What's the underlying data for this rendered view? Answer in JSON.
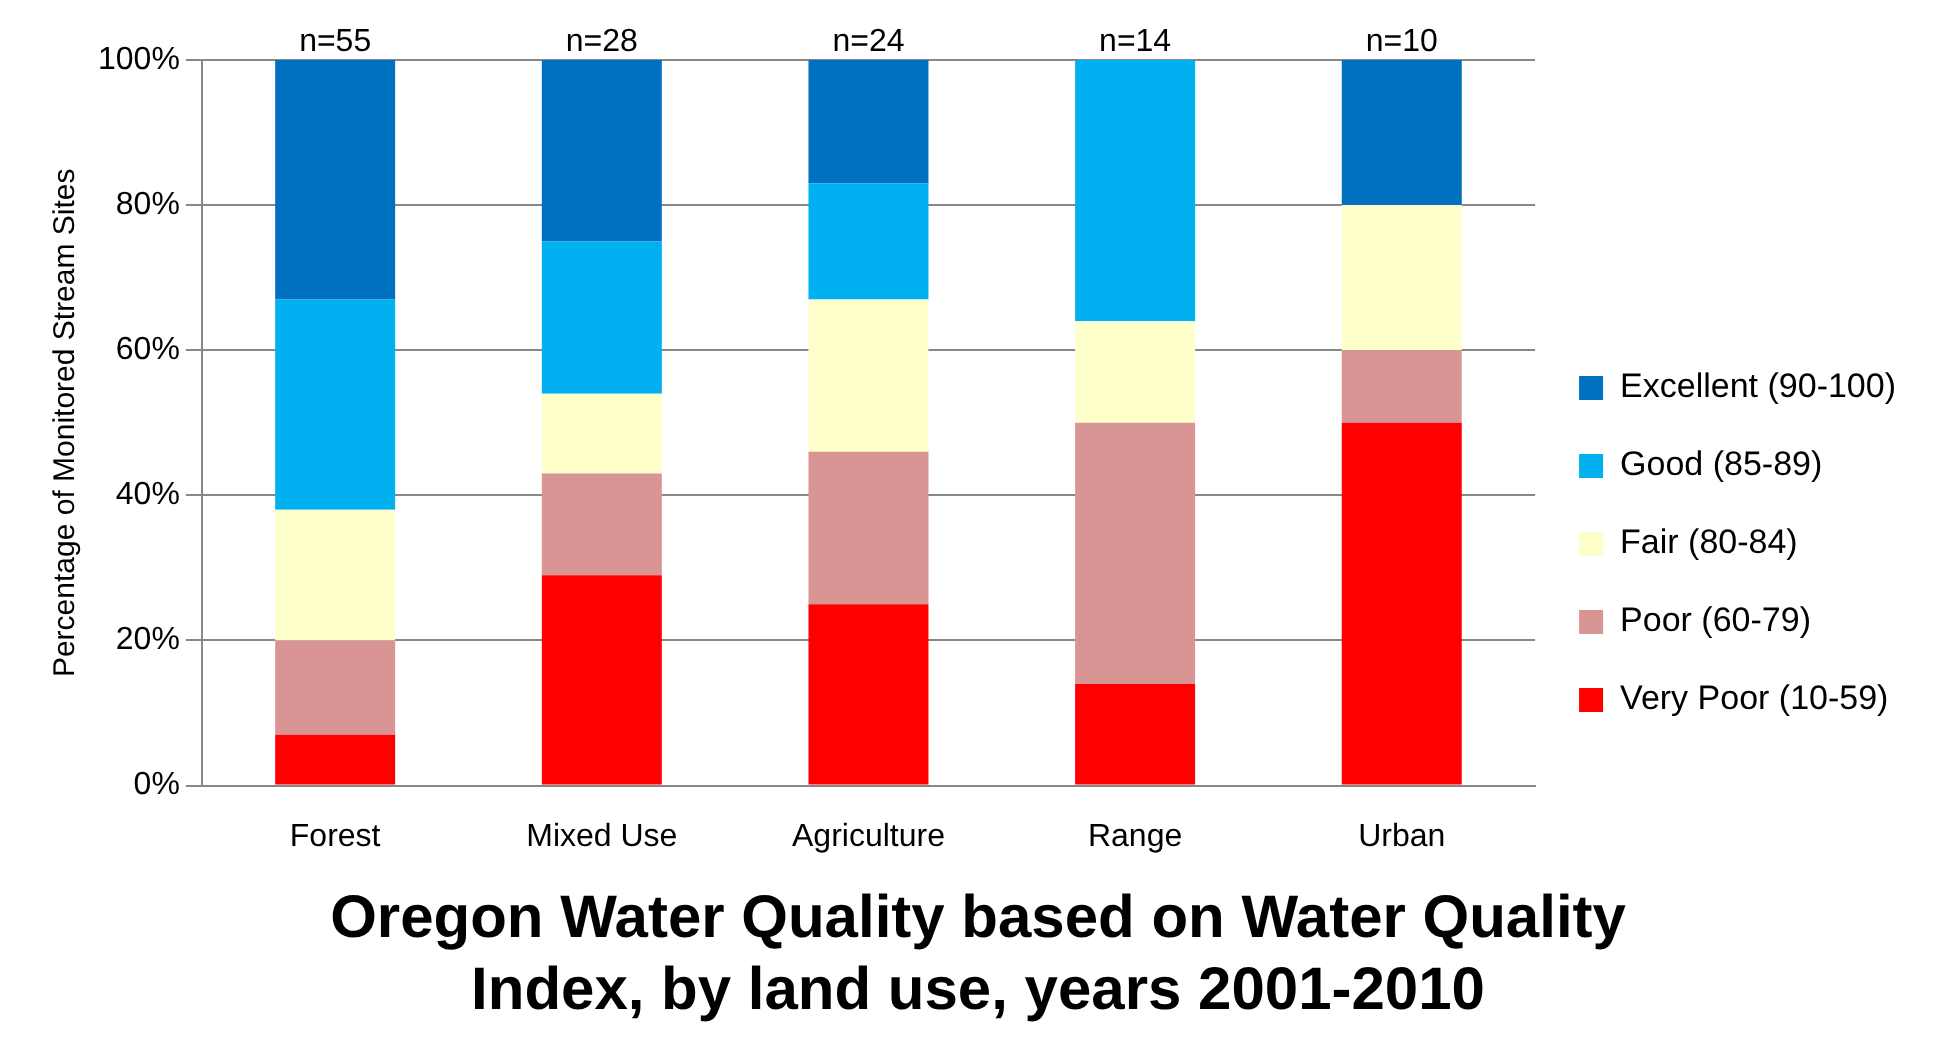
{
  "chart_data": {
    "type": "bar",
    "stacked": true,
    "title": "Oregon Water Quality based on Water Quality Index, by land use, years 2001-2010",
    "ylabel": "Percentage of Monitored Stream Sites",
    "categories": [
      "Forest",
      "Mixed Use",
      "Agriculture",
      "Range",
      "Urban"
    ],
    "series": [
      {
        "name": "Very Poor (10-59)",
        "color": "#ff0000",
        "values": [
          7,
          29,
          25,
          14,
          50
        ]
      },
      {
        "name": "Poor (60-79)",
        "color": "#d99594",
        "values": [
          13,
          14,
          21,
          36,
          10
        ]
      },
      {
        "name": "Fair (80-84)",
        "color": "#ffffcc",
        "values": [
          18,
          11,
          21,
          14,
          20
        ]
      },
      {
        "name": "Good (85-89)",
        "color": "#00b0f0",
        "values": [
          29,
          21,
          16,
          36,
          0
        ]
      },
      {
        "name": "Excellent (90-100)",
        "color": "#0070c0",
        "values": [
          33,
          25,
          17,
          0,
          20
        ]
      }
    ],
    "ylim": [
      0,
      100
    ],
    "yticks": [
      {
        "value": 0,
        "label": "0%"
      },
      {
        "value": 20,
        "label": "20%"
      },
      {
        "value": 40,
        "label": "40%"
      },
      {
        "value": 60,
        "label": "60%"
      },
      {
        "value": 80,
        "label": "80%"
      },
      {
        "value": 100,
        "label": "100%"
      }
    ],
    "annotations": [
      {
        "text": "n=55",
        "x": "Forest",
        "y": 100
      },
      {
        "text": "n=28",
        "x": "Mixed Use",
        "y": 100
      },
      {
        "text": "n=24",
        "x": "Agriculture",
        "y": 100
      },
      {
        "text": "n=14",
        "x": "Range",
        "y": 100
      },
      {
        "text": "n=10",
        "x": "Urban",
        "y": 100
      }
    ],
    "grid": "y",
    "legend": "right"
  }
}
